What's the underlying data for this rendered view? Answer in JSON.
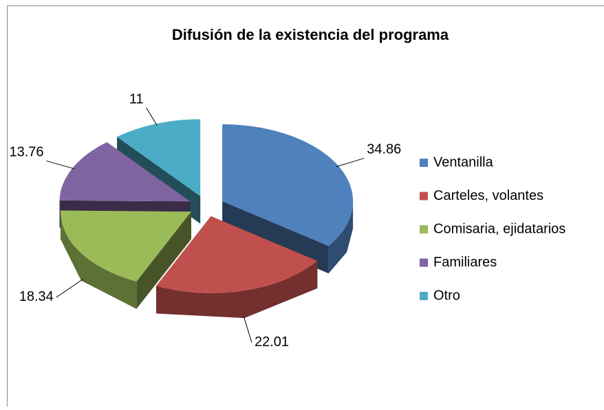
{
  "chart_data": {
    "type": "pie",
    "title": "Difusión de la existencia del programa",
    "categories": [
      "Ventanilla",
      "Carteles, volantes",
      "Comisaria, ejidatarios",
      "Familiares",
      "Otro"
    ],
    "values": [
      34.86,
      22.01,
      18.34,
      13.76,
      11
    ],
    "colors": [
      "#4f81bd",
      "#c0504d",
      "#9bbb59",
      "#8064a2",
      "#4bacc6"
    ],
    "legend": "right",
    "exploded": true,
    "three_d": true
  }
}
